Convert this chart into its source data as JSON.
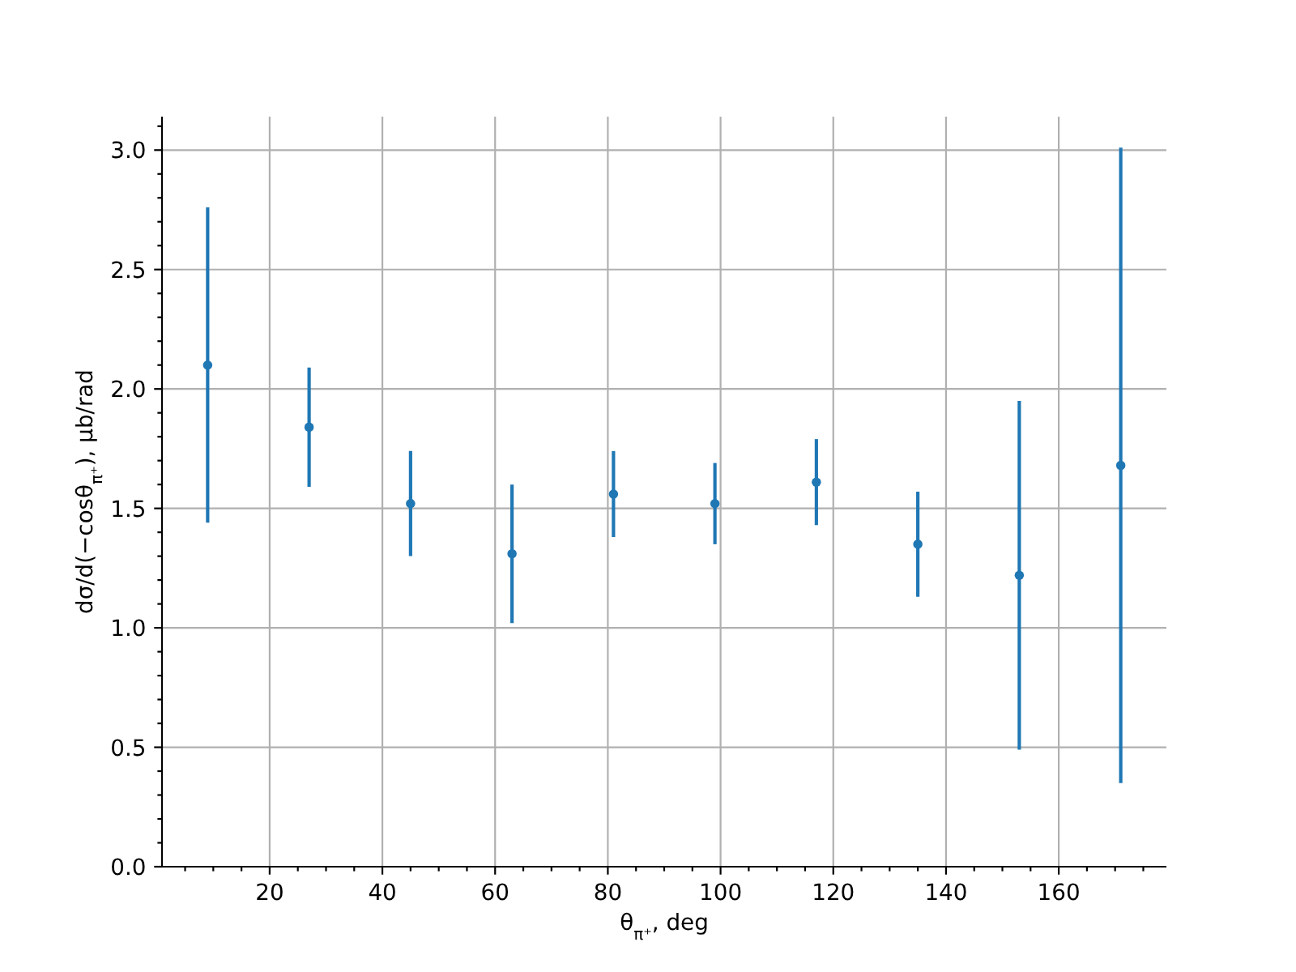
{
  "chart_data": {
    "type": "scatter",
    "xlabel": "θ$_{π⁺}$, deg",
    "ylabel": "dσ/d(−cosθ$_{π⁺}$), μb/rad",
    "x": [
      9,
      27,
      45,
      63,
      81,
      99,
      117,
      135,
      153,
      171
    ],
    "values": [
      2.1,
      1.84,
      1.52,
      1.31,
      1.56,
      1.52,
      1.61,
      1.35,
      1.22,
      1.68
    ],
    "errors": [
      0.66,
      0.25,
      0.22,
      0.29,
      0.18,
      0.17,
      0.18,
      0.22,
      0.73,
      1.33
    ],
    "color": "#1f77b4",
    "marker": "circle",
    "grid": true,
    "xlim": [
      0.9,
      179.1
    ],
    "xticks": [
      {
        "value": 5,
        "label": null
      },
      {
        "value": 10,
        "label": null
      },
      {
        "value": 15,
        "label": null
      },
      20,
      {
        "value": 25,
        "label": null
      },
      {
        "value": 30,
        "label": null
      },
      {
        "value": 35,
        "label": null
      },
      40,
      {
        "value": 45,
        "label": null
      },
      {
        "value": 50,
        "label": null
      },
      {
        "value": 55,
        "label": null
      },
      60,
      {
        "value": 65,
        "label": null
      },
      {
        "value": 70,
        "label": null
      },
      {
        "value": 75,
        "label": null
      },
      80,
      {
        "value": 85,
        "label": null
      },
      {
        "value": 90,
        "label": null
      },
      {
        "value": 95,
        "label": null
      },
      100,
      {
        "value": 105,
        "label": null
      },
      {
        "value": 110,
        "label": null
      },
      {
        "value": 115,
        "label": null
      },
      120,
      {
        "value": 125,
        "label": null
      },
      {
        "value": 130,
        "label": null
      },
      {
        "value": 135,
        "label": null
      },
      140,
      {
        "value": 145,
        "label": null
      },
      {
        "value": 150,
        "label": null
      },
      {
        "value": 155,
        "label": null
      },
      160,
      {
        "value": 165,
        "label": null
      },
      {
        "value": 170,
        "label": null
      },
      {
        "value": 175,
        "label": null
      }
    ],
    "ylim": [
      0,
      3.14
    ],
    "yticks": [
      {
        "value": 0,
        "label": "0.0"
      },
      {
        "value": 0.1,
        "label": null
      },
      {
        "value": 0.2,
        "label": null
      },
      {
        "value": 0.3,
        "label": null
      },
      {
        "value": 0.4,
        "label": null
      },
      0.5,
      {
        "value": 0.6,
        "label": null
      },
      {
        "value": 0.7,
        "label": null
      },
      {
        "value": 0.8,
        "label": null
      },
      {
        "value": 0.9,
        "label": null
      },
      {
        "value": 1,
        "label": "1.0"
      },
      {
        "value": 1.1,
        "label": null
      },
      {
        "value": 1.2,
        "label": null
      },
      {
        "value": 1.3,
        "label": null
      },
      {
        "value": 1.4,
        "label": null
      },
      1.5,
      {
        "value": 1.6,
        "label": null
      },
      {
        "value": 1.7,
        "label": null
      },
      {
        "value": 1.8,
        "label": null
      },
      {
        "value": 1.9,
        "label": null
      },
      {
        "value": 2,
        "label": "2.0"
      },
      {
        "value": 2.1,
        "label": null
      },
      {
        "value": 2.2,
        "label": null
      },
      {
        "value": 2.3,
        "label": null
      },
      {
        "value": 2.4,
        "label": null
      },
      2.5,
      {
        "value": 2.6,
        "label": null
      },
      {
        "value": 2.7,
        "label": null
      },
      {
        "value": 2.8,
        "label": null
      },
      {
        "value": 2.9,
        "label": null
      },
      {
        "value": 3,
        "label": "3.0"
      },
      {
        "value": 3.1,
        "label": null
      }
    ]
  }
}
